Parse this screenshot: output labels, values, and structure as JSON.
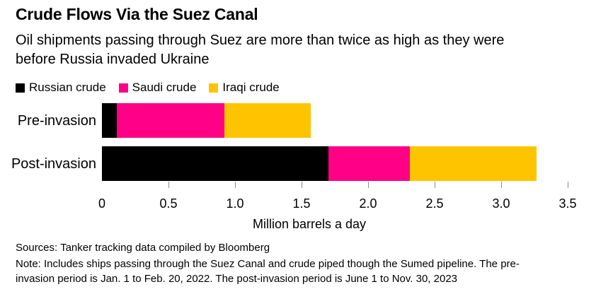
{
  "title": "Crude Flows Via the Suez Canal",
  "subtitle_lines": [
    "Oil shipments passing through Suez are more than twice as high as they were",
    "before Russia invaded Ukraine"
  ],
  "legend": [
    {
      "label": "Russian crude",
      "color": "#000000"
    },
    {
      "label": "Saudi crude",
      "color": "#ff0087"
    },
    {
      "label": "Iraqi crude",
      "color": "#ffc400"
    }
  ],
  "chart_data": {
    "type": "bar",
    "orientation": "horizontal",
    "stacked": true,
    "categories": [
      "Pre-invasion",
      "Post-invasion"
    ],
    "series": [
      {
        "name": "Russian crude",
        "color": "#000000",
        "values": [
          0.11,
          1.7
        ]
      },
      {
        "name": "Saudi crude",
        "color": "#ff0087",
        "values": [
          0.81,
          0.61
        ]
      },
      {
        "name": "Iraqi crude",
        "color": "#ffc400",
        "values": [
          0.65,
          0.95
        ]
      }
    ],
    "totals": [
      1.57,
      3.26
    ],
    "xlabel": "Million barrels a day",
    "xlim": [
      0,
      3.5
    ],
    "xticks": [
      0,
      0.5,
      1.0,
      1.5,
      2.0,
      2.5,
      3.0,
      3.5
    ],
    "xtick_labels": [
      "0",
      "0.5",
      "1.0",
      "1.5",
      "2.0",
      "2.5",
      "3.0",
      "3.5"
    ],
    "legend_position": "top",
    "grid": false,
    "unit": "million barrels a day"
  },
  "footer": {
    "sources": "Sources: Tanker tracking data compiled by Bloomberg",
    "note_lines": [
      "Note: Includes ships passing through the Suez Canal and crude piped though the Sumed pipeline. The pre-",
      "invasion period is Jan. 1 to Feb. 20, 2022. The post-invasion period is June 1 to Nov. 30, 2023"
    ]
  }
}
